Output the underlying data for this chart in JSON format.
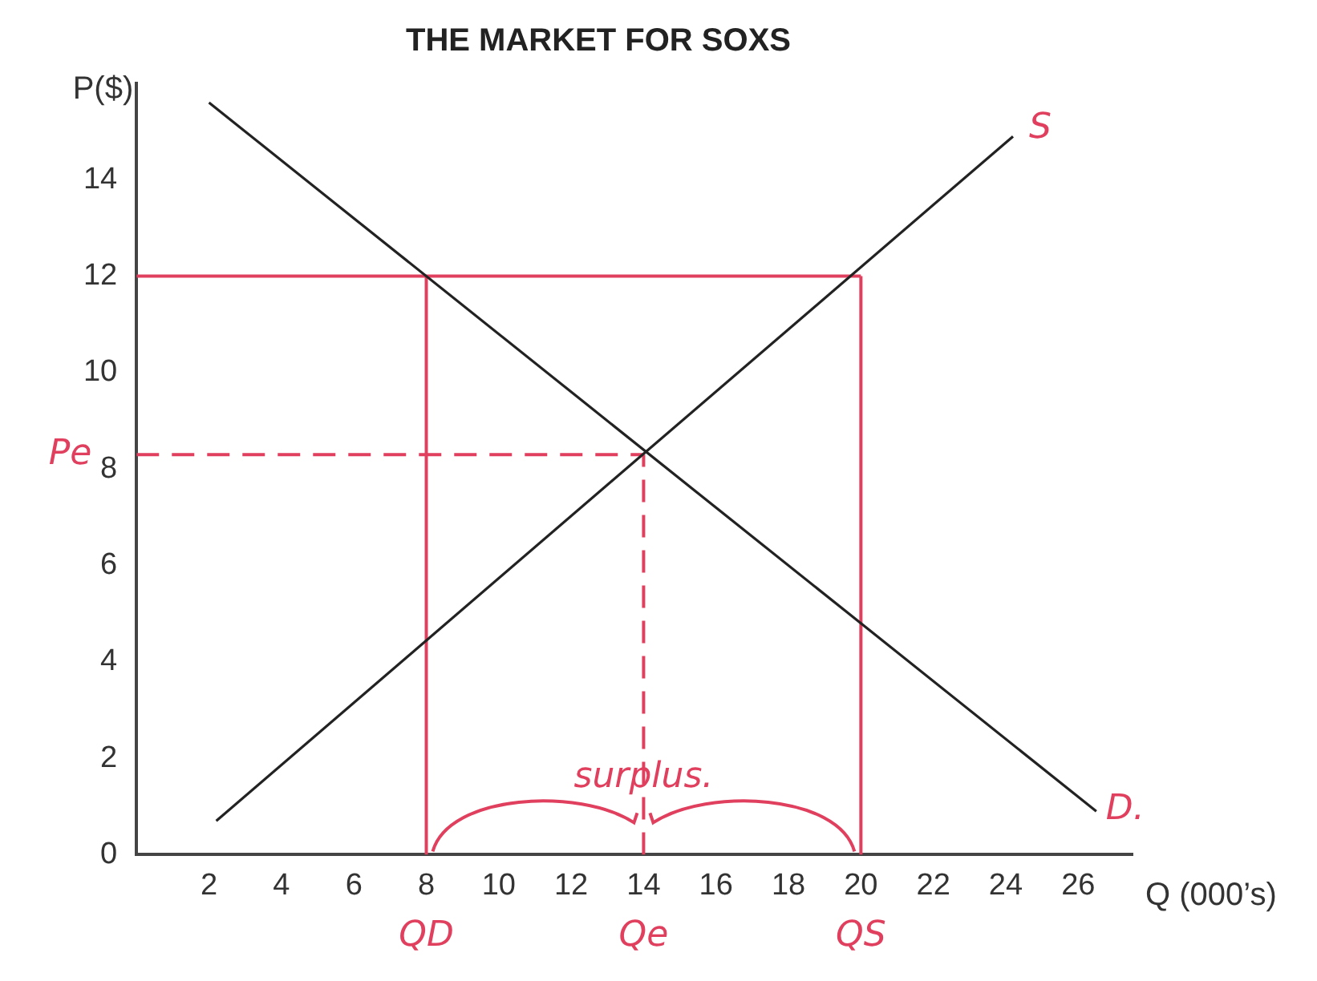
{
  "chart_data": {
    "type": "line",
    "title": "THE MARKET FOR SOXS",
    "xlabel": "Q (000’s)",
    "ylabel": "P($)",
    "xlim": [
      0,
      27.5
    ],
    "ylim": [
      0,
      16
    ],
    "xticks": [
      2,
      4,
      6,
      8,
      10,
      12,
      14,
      16,
      18,
      20,
      22,
      24,
      26
    ],
    "yticks": [
      0,
      2,
      4,
      6,
      8,
      10,
      12,
      14
    ],
    "grid": false,
    "legend": false,
    "marker": "none",
    "series": [
      {
        "type": "line",
        "color": "#222222",
        "line_style": "solid",
        "x": [
          2,
          26.5
        ],
        "values": [
          15.6,
          0.9
        ]
      },
      {
        "type": "line",
        "color": "#222222",
        "line_style": "solid",
        "x": [
          2.2,
          24.2
        ],
        "values": [
          0.7,
          14.9
        ]
      },
      {
        "type": "line",
        "color": "#e0405e",
        "line_style": "solid",
        "x": [
          0,
          20
        ],
        "values": [
          12,
          12
        ]
      },
      {
        "type": "line",
        "color": "#e0405e",
        "line_style": "solid",
        "x": [
          8,
          8
        ],
        "values": [
          0,
          12
        ]
      },
      {
        "type": "line",
        "color": "#e0405e",
        "line_style": "solid",
        "x": [
          20,
          20
        ],
        "values": [
          0,
          12
        ]
      },
      {
        "type": "line",
        "color": "#e0405e",
        "line_style": "dashed",
        "x": [
          0,
          14
        ],
        "values": [
          8.3,
          8.3
        ]
      },
      {
        "type": "line",
        "color": "#e0405e",
        "line_style": "dashed",
        "x": [
          14,
          14
        ],
        "values": [
          0,
          8.3
        ]
      }
    ],
    "annotations": [
      {
        "text": "S",
        "x": 24.2,
        "y": 14.9
      },
      {
        "text": "D.",
        "x": 26.5,
        "y": 0.9
      },
      {
        "text": "surplus.",
        "x": 14,
        "y": 1.6
      },
      {
        "text": "Pe",
        "x": 0,
        "y": 8.3
      },
      {
        "text": "QD",
        "x": 8,
        "y": 0
      },
      {
        "text": "Qe",
        "x": 14,
        "y": 0
      },
      {
        "text": "QS",
        "x": 20,
        "y": 0
      }
    ]
  }
}
